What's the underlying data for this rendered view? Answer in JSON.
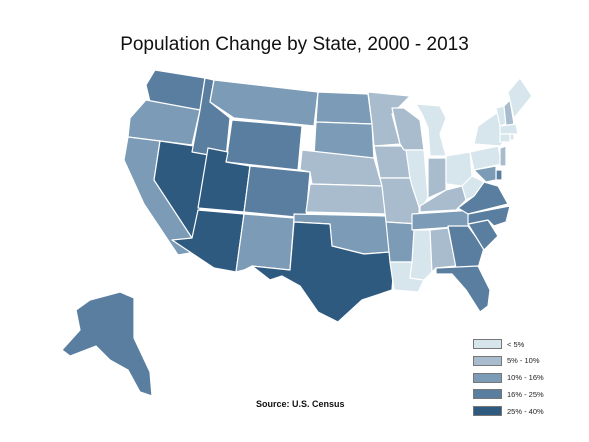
{
  "title": "Population Change by State, 2000 - 2013",
  "source": "Source: U.S. Census",
  "legend": [
    {
      "label": "< 5%",
      "color": "#d6e6ec"
    },
    {
      "label": "5% - 10%",
      "color": "#a8bccd"
    },
    {
      "label": "10% - 16%",
      "color": "#7b9bb6"
    },
    {
      "label": "16% - 25%",
      "color": "#5a7ea0"
    },
    {
      "label": "25% - 40%",
      "color": "#2f5a80"
    }
  ],
  "states": [
    {
      "id": "WA",
      "class": 3
    },
    {
      "id": "OR",
      "class": 2
    },
    {
      "id": "CA",
      "class": 2
    },
    {
      "id": "NV",
      "class": 4
    },
    {
      "id": "ID",
      "class": 3
    },
    {
      "id": "MT",
      "class": 2
    },
    {
      "id": "WY",
      "class": 3
    },
    {
      "id": "UT",
      "class": 4
    },
    {
      "id": "AZ",
      "class": 4
    },
    {
      "id": "CO",
      "class": 3
    },
    {
      "id": "NM",
      "class": 2
    },
    {
      "id": "ND",
      "class": 2
    },
    {
      "id": "SD",
      "class": 2
    },
    {
      "id": "NE",
      "class": 1
    },
    {
      "id": "KS",
      "class": 1
    },
    {
      "id": "OK",
      "class": 2
    },
    {
      "id": "TX",
      "class": 4
    },
    {
      "id": "MN",
      "class": 1
    },
    {
      "id": "IA",
      "class": 1
    },
    {
      "id": "MO",
      "class": 1
    },
    {
      "id": "AR",
      "class": 2
    },
    {
      "id": "LA",
      "class": 0
    },
    {
      "id": "WI",
      "class": 1
    },
    {
      "id": "IL",
      "class": 0
    },
    {
      "id": "MI",
      "class": 0
    },
    {
      "id": "IN",
      "class": 1
    },
    {
      "id": "OH",
      "class": 0
    },
    {
      "id": "KY",
      "class": 1
    },
    {
      "id": "TN",
      "class": 2
    },
    {
      "id": "MS",
      "class": 0
    },
    {
      "id": "AL",
      "class": 1
    },
    {
      "id": "GA",
      "class": 3
    },
    {
      "id": "FL",
      "class": 3
    },
    {
      "id": "SC",
      "class": 3
    },
    {
      "id": "NC",
      "class": 3
    },
    {
      "id": "VA",
      "class": 3
    },
    {
      "id": "WV",
      "class": 0
    },
    {
      "id": "PA",
      "class": 0
    },
    {
      "id": "NY",
      "class": 0
    },
    {
      "id": "VT",
      "class": 0
    },
    {
      "id": "NH",
      "class": 1
    },
    {
      "id": "ME",
      "class": 0
    },
    {
      "id": "MA",
      "class": 0
    },
    {
      "id": "RI",
      "class": 0
    },
    {
      "id": "CT",
      "class": 0
    },
    {
      "id": "NJ",
      "class": 1
    },
    {
      "id": "DE",
      "class": 3
    },
    {
      "id": "MD",
      "class": 2
    },
    {
      "id": "AK",
      "class": 3
    }
  ]
}
